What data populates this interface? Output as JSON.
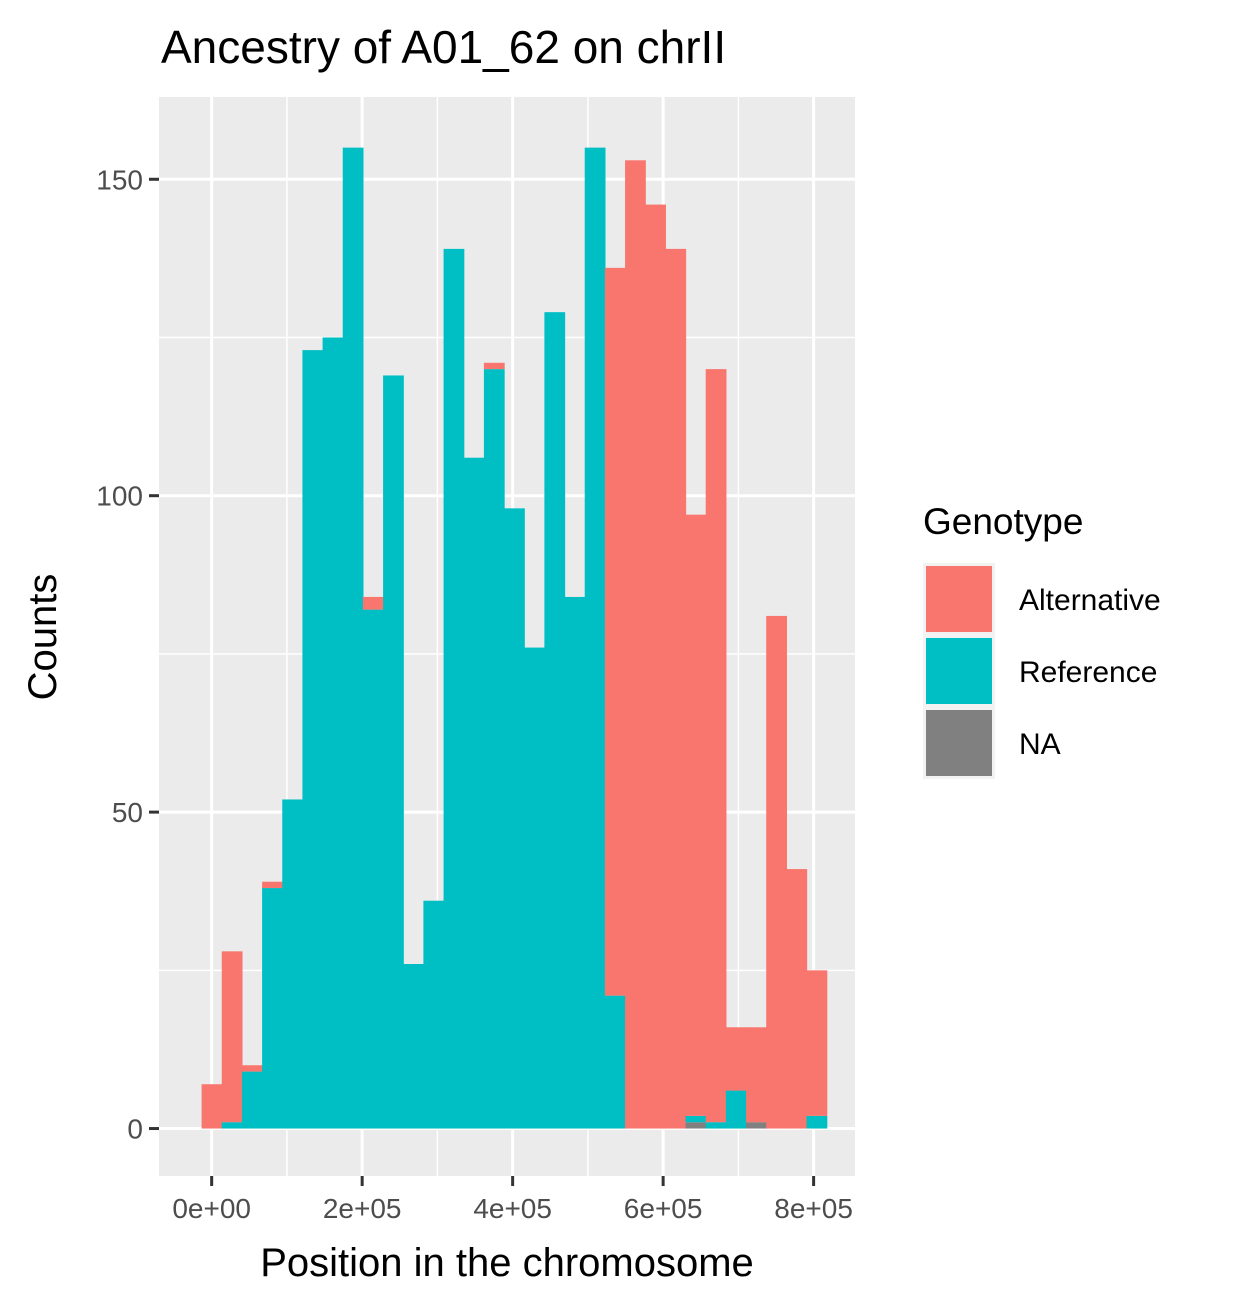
{
  "chart_data": {
    "type": "bar",
    "stacked": true,
    "title": "Ancestry of A01_62 on chrII",
    "xlabel": "Position in the chromosome",
    "ylabel": "Counts",
    "xlim": [
      -70000,
      855000
    ],
    "ylim": [
      -7.5,
      163
    ],
    "x_ticks": [
      0,
      200000,
      400000,
      600000,
      800000
    ],
    "x_tick_labels": [
      "0e+00",
      "2e+05",
      "4e+05",
      "6e+05",
      "8e+05"
    ],
    "y_ticks": [
      0,
      50,
      100,
      150
    ],
    "y_tick_labels": [
      "0",
      "50",
      "100",
      "150"
    ],
    "bin_width": 26800,
    "grid": true,
    "legend": {
      "title": "Genotype",
      "position": "right",
      "entries": [
        {
          "label": "Alternative",
          "color": "#F8766D"
        },
        {
          "label": "Reference",
          "color": "#00BFC4"
        },
        {
          "label": "NA",
          "color": "#808080"
        }
      ]
    },
    "bin_centers": [
      0,
      26800,
      53600,
      80400,
      107200,
      134000,
      160800,
      187600,
      214400,
      241200,
      268000,
      294800,
      321600,
      348400,
      375200,
      402000,
      428800,
      455600,
      482400,
      509200,
      536000,
      562800,
      589600,
      616400,
      643200,
      670000,
      696800,
      723600,
      750400,
      777200,
      804000
    ],
    "series": [
      {
        "name": "NA",
        "color": "#808080",
        "values": [
          0,
          0,
          0,
          0,
          0,
          0,
          0,
          0,
          0,
          0,
          0,
          0,
          0,
          0,
          0,
          0,
          0,
          0,
          0,
          0,
          0,
          0,
          0,
          0,
          1,
          0,
          0,
          1,
          0,
          0,
          0
        ]
      },
      {
        "name": "Reference",
        "color": "#00BFC4",
        "values": [
          0,
          1,
          9,
          38,
          52,
          123,
          125,
          155,
          82,
          119,
          26,
          36,
          139,
          106,
          120,
          98,
          76,
          129,
          84,
          155,
          21,
          0,
          0,
          0,
          1,
          1,
          6,
          0,
          0,
          0,
          2
        ]
      },
      {
        "name": "Alternative",
        "color": "#F8766D",
        "values": [
          7,
          27,
          1,
          1,
          0,
          0,
          0,
          0,
          2,
          0,
          0,
          0,
          0,
          0,
          1,
          0,
          0,
          0,
          0,
          0,
          115,
          153,
          146,
          139,
          95,
          119,
          10,
          15,
          81,
          41,
          23
        ]
      }
    ]
  }
}
